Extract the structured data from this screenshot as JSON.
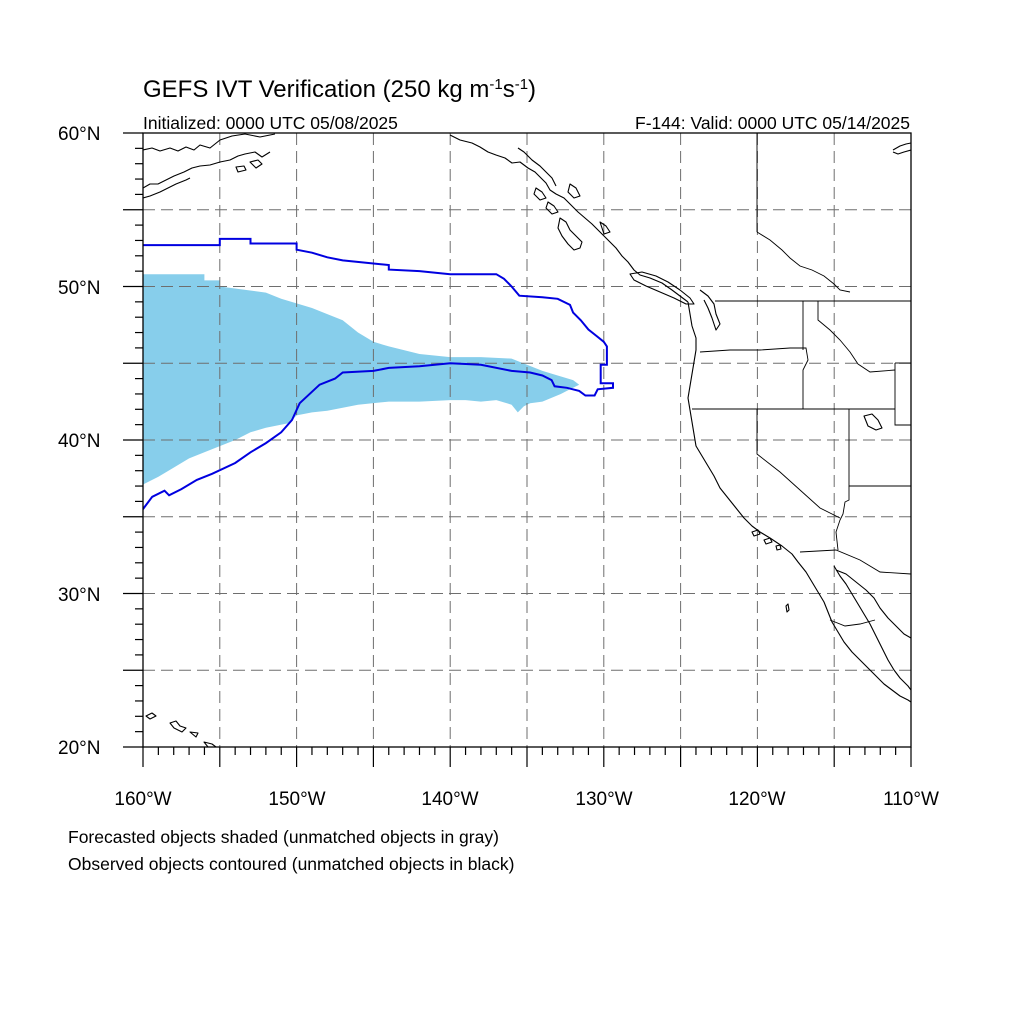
{
  "title": {
    "main": "GEFS IVT Verification (250 kg m",
    "sup1": "-1",
    "mid": "s",
    "sup2": "-1",
    "end": ")"
  },
  "initialized": "Initialized: 0000 UTC 05/08/2025",
  "valid": "F-144: Valid: 0000 UTC 05/14/2025",
  "map": {
    "lon_range": [
      -160,
      -110
    ],
    "lat_range": [
      20,
      60
    ],
    "grid_spacing_deg": 5,
    "grid_style": "dashed",
    "lon_labels": [
      "160°W",
      "150°W",
      "140°W",
      "130°W",
      "120°W",
      "110°W"
    ],
    "lat_labels": [
      "20°N",
      "30°N",
      "40°N",
      "50°N",
      "60°N"
    ],
    "forecast_color": "#87ceeb",
    "observed_color": "#0000e0",
    "forecast_object": {
      "label": "forecast",
      "polygon_lonlat": [
        [
          -160.0,
          50.8
        ],
        [
          -156.0,
          50.8
        ],
        [
          -156.0,
          50.4
        ],
        [
          -155.0,
          50.4
        ],
        [
          -155.0,
          50.0
        ],
        [
          -152.0,
          49.6
        ],
        [
          -151.0,
          49.2
        ],
        [
          -150.0,
          48.9
        ],
        [
          -149.0,
          48.6
        ],
        [
          -148.0,
          48.2
        ],
        [
          -147.0,
          47.8
        ],
        [
          -146.0,
          47.0
        ],
        [
          -145.0,
          46.4
        ],
        [
          -144.0,
          46.1
        ],
        [
          -142.0,
          45.6
        ],
        [
          -140.0,
          45.4
        ],
        [
          -138.0,
          45.4
        ],
        [
          -136.0,
          45.3
        ],
        [
          -135.0,
          44.9
        ],
        [
          -134.0,
          44.5
        ],
        [
          -133.0,
          44.2
        ],
        [
          -132.0,
          43.9
        ],
        [
          -131.6,
          43.6
        ],
        [
          -132.2,
          43.3
        ],
        [
          -132.8,
          43.0
        ],
        [
          -134.0,
          42.5
        ],
        [
          -134.8,
          42.4
        ],
        [
          -135.2,
          42.2
        ],
        [
          -135.6,
          41.8
        ],
        [
          -136.0,
          42.3
        ],
        [
          -137.0,
          42.6
        ],
        [
          -138.0,
          42.5
        ],
        [
          -139.0,
          42.6
        ],
        [
          -140.0,
          42.6
        ],
        [
          -142.0,
          42.5
        ],
        [
          -144.0,
          42.5
        ],
        [
          -146.0,
          42.3
        ],
        [
          -147.0,
          42.1
        ],
        [
          -148.0,
          41.9
        ],
        [
          -149.0,
          41.8
        ],
        [
          -150.0,
          41.6
        ],
        [
          -150.5,
          41.1
        ],
        [
          -152.0,
          40.8
        ],
        [
          -153.0,
          40.5
        ],
        [
          -154.0,
          40.0
        ],
        [
          -155.0,
          39.6
        ],
        [
          -156.0,
          39.2
        ],
        [
          -157.0,
          38.8
        ],
        [
          -158.0,
          38.2
        ],
        [
          -159.0,
          37.6
        ],
        [
          -160.0,
          37.1
        ]
      ]
    },
    "observed_object": {
      "label": "observed",
      "polyline_lonlat": [
        [
          -160.0,
          52.7
        ],
        [
          -155.0,
          52.7
        ],
        [
          -155.0,
          53.1
        ],
        [
          -153.0,
          53.1
        ],
        [
          -153.0,
          52.8
        ],
        [
          -150.0,
          52.8
        ],
        [
          -150.0,
          52.4
        ],
        [
          -149.0,
          52.2
        ],
        [
          -148.0,
          51.9
        ],
        [
          -147.0,
          51.7
        ],
        [
          -145.0,
          51.5
        ],
        [
          -144.0,
          51.4
        ],
        [
          -144.0,
          51.1
        ],
        [
          -142.0,
          51.0
        ],
        [
          -140.0,
          50.8
        ],
        [
          -137.0,
          50.8
        ],
        [
          -136.5,
          50.5
        ],
        [
          -136.0,
          50.0
        ],
        [
          -135.5,
          49.4
        ],
        [
          -134.0,
          49.3
        ],
        [
          -133.0,
          49.2
        ],
        [
          -132.2,
          48.8
        ],
        [
          -132.0,
          48.3
        ],
        [
          -131.5,
          47.8
        ],
        [
          -131.0,
          47.2
        ],
        [
          -130.5,
          46.8
        ],
        [
          -130.0,
          46.4
        ],
        [
          -129.8,
          46.1
        ],
        [
          -129.8,
          44.9
        ],
        [
          -130.2,
          44.9
        ],
        [
          -130.2,
          43.7
        ],
        [
          -129.4,
          43.7
        ],
        [
          -129.4,
          43.4
        ],
        [
          -130.4,
          43.3
        ],
        [
          -130.6,
          42.9
        ],
        [
          -131.2,
          42.9
        ],
        [
          -131.6,
          43.2
        ],
        [
          -132.4,
          43.4
        ],
        [
          -133.2,
          43.5
        ],
        [
          -133.4,
          43.9
        ],
        [
          -134.0,
          44.2
        ],
        [
          -134.8,
          44.4
        ],
        [
          -136.0,
          44.5
        ],
        [
          -138.0,
          44.9
        ],
        [
          -140.0,
          45.0
        ],
        [
          -142.0,
          44.8
        ],
        [
          -144.0,
          44.7
        ],
        [
          -145.0,
          44.5
        ],
        [
          -147.0,
          44.4
        ],
        [
          -147.5,
          44.0
        ],
        [
          -148.5,
          43.6
        ],
        [
          -149.8,
          42.4
        ],
        [
          -150.3,
          41.3
        ],
        [
          -151.0,
          40.5
        ],
        [
          -152.0,
          39.8
        ],
        [
          -153.0,
          39.2
        ],
        [
          -154.0,
          38.5
        ],
        [
          -155.5,
          37.8
        ],
        [
          -156.5,
          37.4
        ],
        [
          -157.5,
          36.8
        ],
        [
          -158.3,
          36.4
        ],
        [
          -158.6,
          36.7
        ],
        [
          -159.4,
          36.3
        ],
        [
          -160.0,
          35.5
        ]
      ]
    }
  },
  "notes": {
    "line1": "Forecasted objects shaded (unmatched objects in gray)",
    "line2": "Observed objects contoured (unmatched objects in black)"
  }
}
